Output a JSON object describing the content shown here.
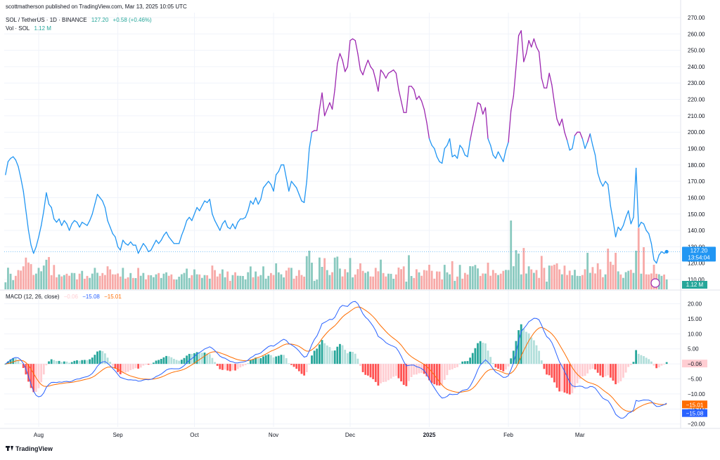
{
  "header": {
    "published": "scottmatherson published on TradingView.com, Mar 13, 2025 10:05 UTC",
    "symbol": "SOL / TetherUS · 1D · BINANCE",
    "last": "127.20",
    "change": "+0.58 (+0.46%)",
    "vol_label": "Vol · SOL",
    "vol_value": "1.12 M",
    "macd_label": "MACD (12, 26, close)",
    "macd_hist": "−0.06",
    "macd_line": "−15.08",
    "macd_signal": "−15.01"
  },
  "price_tag": {
    "value": "127.20",
    "countdown": "13:54:04"
  },
  "vol_tag": "1.12 M",
  "macd_tags": {
    "hist": "−0.06",
    "signal": "−15.01",
    "macd": "−15.08"
  },
  "footer": {
    "brand": "TradingView"
  },
  "colors": {
    "line_up_purple": "#9c27b0",
    "line_blue": "#2196f3",
    "vol_up": "#89c9bf",
    "vol_down": "#f7a9a7",
    "macd_line": "#2962ff",
    "signal_line": "#ff6d00",
    "hist_pos_strong": "#26a69a",
    "hist_pos_weak": "#b2dfdb",
    "hist_neg_strong": "#ff5252",
    "hist_neg_weak": "#ffcdd2"
  },
  "chart_data": [
    {
      "type": "line",
      "title": "SOL / TetherUS · 1D · BINANCE",
      "xlabel": "",
      "ylabel": "",
      "x_ticks": [
        "Aug",
        "Sep",
        "Oct",
        "Nov",
        "Dec",
        "2025",
        "Feb",
        "Mar"
      ],
      "y_ticks": [
        "110.00",
        "120.00",
        "130.00",
        "140.00",
        "150.00",
        "160.00",
        "170.00",
        "180.00",
        "190.00",
        "200.00",
        "210.00",
        "220.00",
        "230.00",
        "240.00",
        "250.00",
        "260.00",
        "270.00"
      ],
      "ylim": [
        104,
        273
      ],
      "x_range": [
        "2024-07-19",
        "2025-03-13"
      ],
      "series": [
        {
          "values": [
            174,
            182,
            184,
            185,
            183,
            179,
            172,
            164,
            152,
            140,
            131,
            126,
            130,
            136,
            143,
            152,
            163,
            156,
            154,
            147,
            145,
            147,
            143,
            146,
            144,
            140,
            144,
            146,
            145,
            142,
            145,
            144,
            143,
            146,
            150,
            156,
            162,
            160,
            158,
            154,
            146,
            142,
            138,
            136,
            130,
            128,
            134,
            132,
            131,
            133,
            131,
            131,
            126,
            129,
            132,
            130,
            127,
            128,
            131,
            134,
            132,
            134,
            137,
            139,
            136,
            134,
            132,
            132,
            132,
            137,
            141,
            146,
            148,
            146,
            150,
            154,
            152,
            155,
            158,
            157,
            159,
            150,
            146,
            143,
            140,
            144,
            146,
            142,
            141,
            144,
            141,
            145,
            147,
            147,
            148,
            152,
            158,
            156,
            160,
            156,
            159,
            166,
            168,
            170,
            168,
            164,
            174,
            176,
            180,
            180,
            172,
            164,
            170,
            168,
            166,
            162,
            158,
            157,
            170,
            190,
            200,
            201,
            201,
            214,
            224,
            210,
            214,
            218,
            214,
            226,
            242,
            248,
            244,
            237,
            240,
            256,
            257,
            256,
            248,
            238,
            235,
            240,
            244,
            240,
            238,
            232,
            225,
            238,
            236,
            233,
            236,
            237,
            238,
            236,
            226,
            219,
            212,
            212,
            228,
            228,
            226,
            220,
            222,
            219,
            214,
            206,
            196,
            192,
            190,
            185,
            182,
            181,
            190,
            192,
            196,
            185,
            186,
            184,
            192,
            190,
            186,
            185,
            195,
            203,
            210,
            218,
            217,
            211,
            215,
            196,
            192,
            186,
            184,
            188,
            185,
            182,
            189,
            194,
            213,
            222,
            240,
            259,
            262,
            243,
            248,
            256,
            252,
            257,
            252,
            249,
            233,
            227,
            227,
            236,
            229,
            218,
            208,
            204,
            208,
            200,
            195,
            189,
            190,
            198,
            200,
            200,
            196,
            190,
            194,
            199,
            192,
            186,
            175,
            170,
            167,
            170,
            168,
            155,
            146,
            136,
            142,
            140,
            143,
            148,
            152,
            144,
            148,
            178,
            142,
            145,
            144,
            140,
            138,
            132,
            122,
            120,
            125,
            127,
            126,
            127
          ]
        }
      ]
    },
    {
      "type": "bar",
      "title": "Vol · SOL",
      "note": "volume bars, up = teal, down = red",
      "last_value": "1.12 M",
      "spikes": [
        "2024-08-05",
        "2025-01-19",
        "2025-03-03"
      ]
    },
    {
      "type": "line",
      "title": "MACD (12, 26, close)",
      "y_ticks": [
        "20.00",
        "15.00",
        "10.00",
        "5.00",
        "0.00",
        "−5.00",
        "−10.00",
        "−15.00",
        "−20.00"
      ],
      "ylim": [
        -21,
        22
      ],
      "series": [
        {
          "name": "MACD",
          "last": -15.08
        },
        {
          "name": "Signal",
          "last": -15.01
        },
        {
          "name": "Histogram",
          "last": -0.06
        }
      ]
    }
  ]
}
